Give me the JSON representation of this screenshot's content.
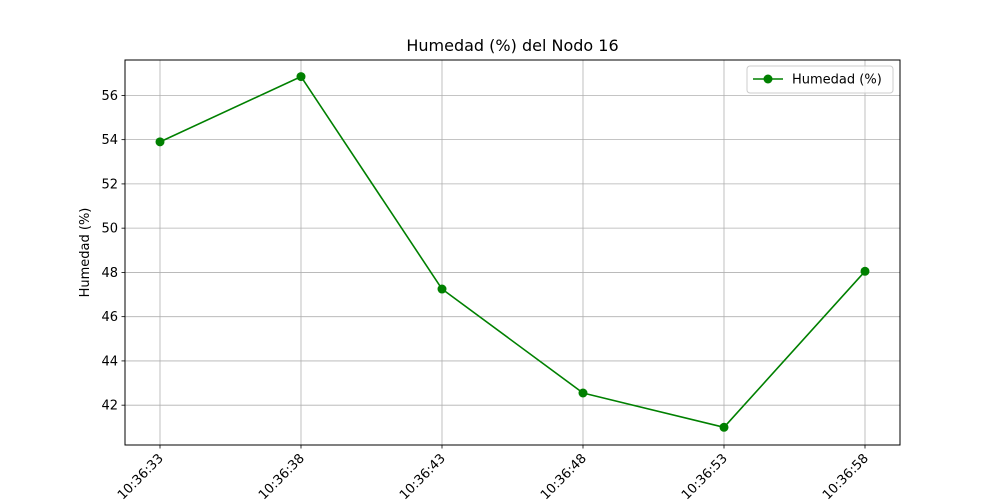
{
  "chart_data": {
    "type": "line",
    "title": "Humedad (%) del Nodo 16",
    "xlabel": "",
    "ylabel": "Humedad (%)",
    "categories": [
      "10:36:33",
      "10:36:38",
      "10:36:43",
      "10:36:48",
      "10:36:53",
      "10:36:58"
    ],
    "series": [
      {
        "name": "Humedad (%)",
        "color": "#008000",
        "marker": "circle",
        "values": [
          53.9,
          56.85,
          47.25,
          42.55,
          41.0,
          48.05
        ]
      }
    ],
    "yticks": [
      42,
      44,
      46,
      48,
      50,
      52,
      54,
      56
    ],
    "ylim": [
      40.2,
      57.6
    ],
    "grid": true,
    "legend_position": "top-right",
    "xtick_rotation_deg": 45
  }
}
